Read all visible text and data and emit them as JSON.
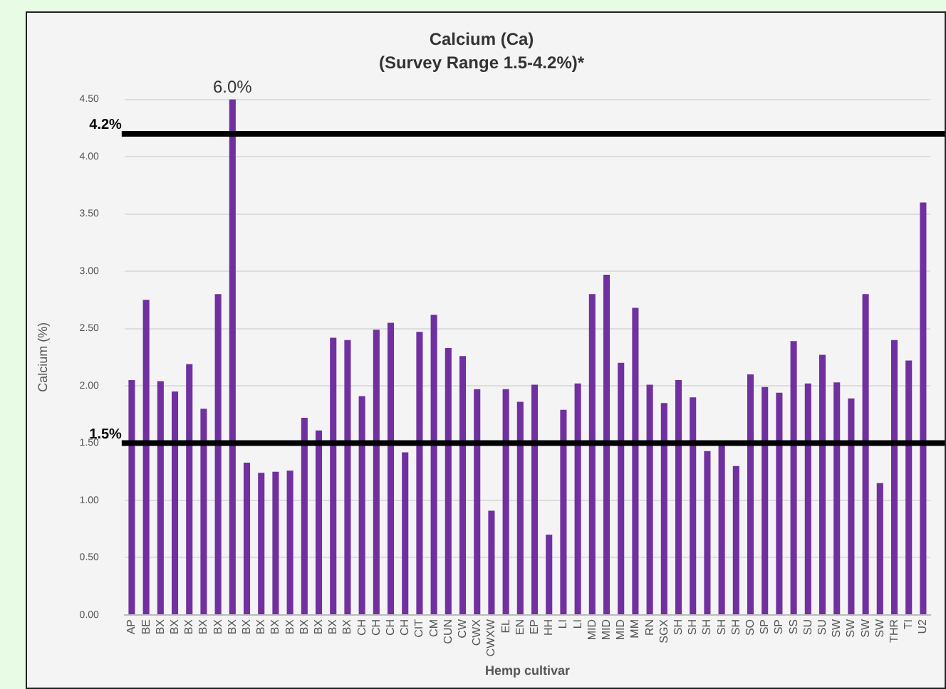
{
  "chart_data": {
    "type": "bar",
    "title": "Calcium (Ca)",
    "subtitle": "(Survey Range 1.5-4.2%)*",
    "xlabel": "Hemp cultivar",
    "ylabel": "Calcium (%)",
    "categories": [
      "AP",
      "BE",
      "BX",
      "BX",
      "BX",
      "BX",
      "BX",
      "BX",
      "BX",
      "BX",
      "BX",
      "BX",
      "BX",
      "BX",
      "BX",
      "BX",
      "CH",
      "CH",
      "CH",
      "CH",
      "CIT",
      "CM",
      "CUN",
      "CW",
      "CWX",
      "CWXW",
      "EL",
      "EN",
      "EP",
      "HH",
      "LI",
      "LI",
      "MID",
      "MID",
      "MID",
      "MM",
      "RN",
      "SGX",
      "SH",
      "SH",
      "SH",
      "SH",
      "SH",
      "SO",
      "SP",
      "SP",
      "SS",
      "SU",
      "SU",
      "SW",
      "SW",
      "SW",
      "SW",
      "THR",
      "TI",
      "U2"
    ],
    "values": [
      2.05,
      2.75,
      2.04,
      1.95,
      2.19,
      1.8,
      2.8,
      4.5,
      1.33,
      1.24,
      1.25,
      1.26,
      1.72,
      1.61,
      2.42,
      2.4,
      1.91,
      2.49,
      2.55,
      1.42,
      2.47,
      2.62,
      2.33,
      2.26,
      1.97,
      0.91,
      1.97,
      1.86,
      2.01,
      0.7,
      1.79,
      2.02,
      2.8,
      2.97,
      2.2,
      2.68,
      2.01,
      1.85,
      2.05,
      1.9,
      1.43,
      1.49,
      1.3,
      2.1,
      1.99,
      1.94,
      2.39,
      2.02,
      2.27,
      2.03,
      1.89,
      2.8,
      1.15,
      2.4,
      2.22,
      3.6
    ],
    "annotations": [
      "6.0%"
    ],
    "color": "#7030a0",
    "ylim": [
      0,
      4.5
    ],
    "yticks": [
      {
        "value": 0,
        "label": "0.00"
      },
      {
        "value": 0.5,
        "label": "0.50"
      },
      {
        "value": 1,
        "label": "1.00"
      },
      {
        "value": 1.5,
        "label": "1.50"
      },
      {
        "value": 2,
        "label": "2.00"
      },
      {
        "value": 2.5,
        "label": "2.50"
      },
      {
        "value": 3,
        "label": "3.00"
      },
      {
        "value": 3.5,
        "label": "3.50"
      },
      {
        "value": 4,
        "label": "4.00"
      },
      {
        "value": 4.5,
        "label": "4.50"
      }
    ],
    "ref_lines": [
      {
        "axis": "y",
        "value": 4.2,
        "label": "4.2%",
        "color": "#000000"
      },
      {
        "axis": "y",
        "value": 1.5,
        "label": "1.5%",
        "color": "#000000"
      }
    ],
    "grid": "y",
    "legend": false
  }
}
